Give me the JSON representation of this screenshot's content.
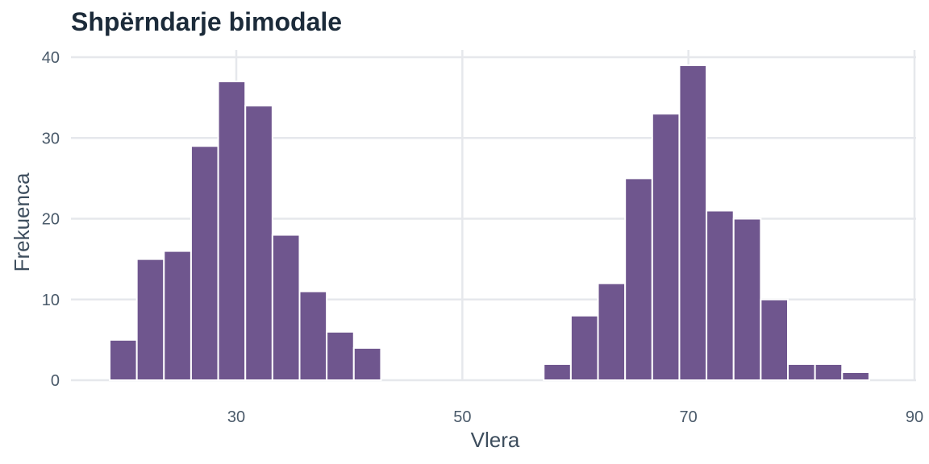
{
  "chart_data": {
    "type": "bar",
    "title": "Shpërndarje bimodale",
    "xlabel": "Vlera",
    "ylabel": "Frekuenca",
    "xlim": [
      15,
      90
    ],
    "ylim": [
      0,
      40
    ],
    "x_ticks": [
      30,
      50,
      70,
      90
    ],
    "y_ticks": [
      0,
      10,
      20,
      30,
      40
    ],
    "bin_width": 2.4,
    "bins": [
      {
        "x0": 18.8,
        "value": 5
      },
      {
        "x0": 21.2,
        "value": 15
      },
      {
        "x0": 23.6,
        "value": 16
      },
      {
        "x0": 26.0,
        "value": 29
      },
      {
        "x0": 28.4,
        "value": 37
      },
      {
        "x0": 30.8,
        "value": 34
      },
      {
        "x0": 33.2,
        "value": 18
      },
      {
        "x0": 35.6,
        "value": 11
      },
      {
        "x0": 38.0,
        "value": 6
      },
      {
        "x0": 40.4,
        "value": 4
      },
      {
        "x0": 57.2,
        "value": 2
      },
      {
        "x0": 59.6,
        "value": 8
      },
      {
        "x0": 62.0,
        "value": 12
      },
      {
        "x0": 64.4,
        "value": 25
      },
      {
        "x0": 66.8,
        "value": 33
      },
      {
        "x0": 69.2,
        "value": 39
      },
      {
        "x0": 71.6,
        "value": 21
      },
      {
        "x0": 74.0,
        "value": 20
      },
      {
        "x0": 76.4,
        "value": 10
      },
      {
        "x0": 78.8,
        "value": 2
      },
      {
        "x0": 81.2,
        "value": 2
      },
      {
        "x0": 83.6,
        "value": 1
      }
    ],
    "bar_color": "#6f568e",
    "grid": true,
    "legend": "none"
  }
}
